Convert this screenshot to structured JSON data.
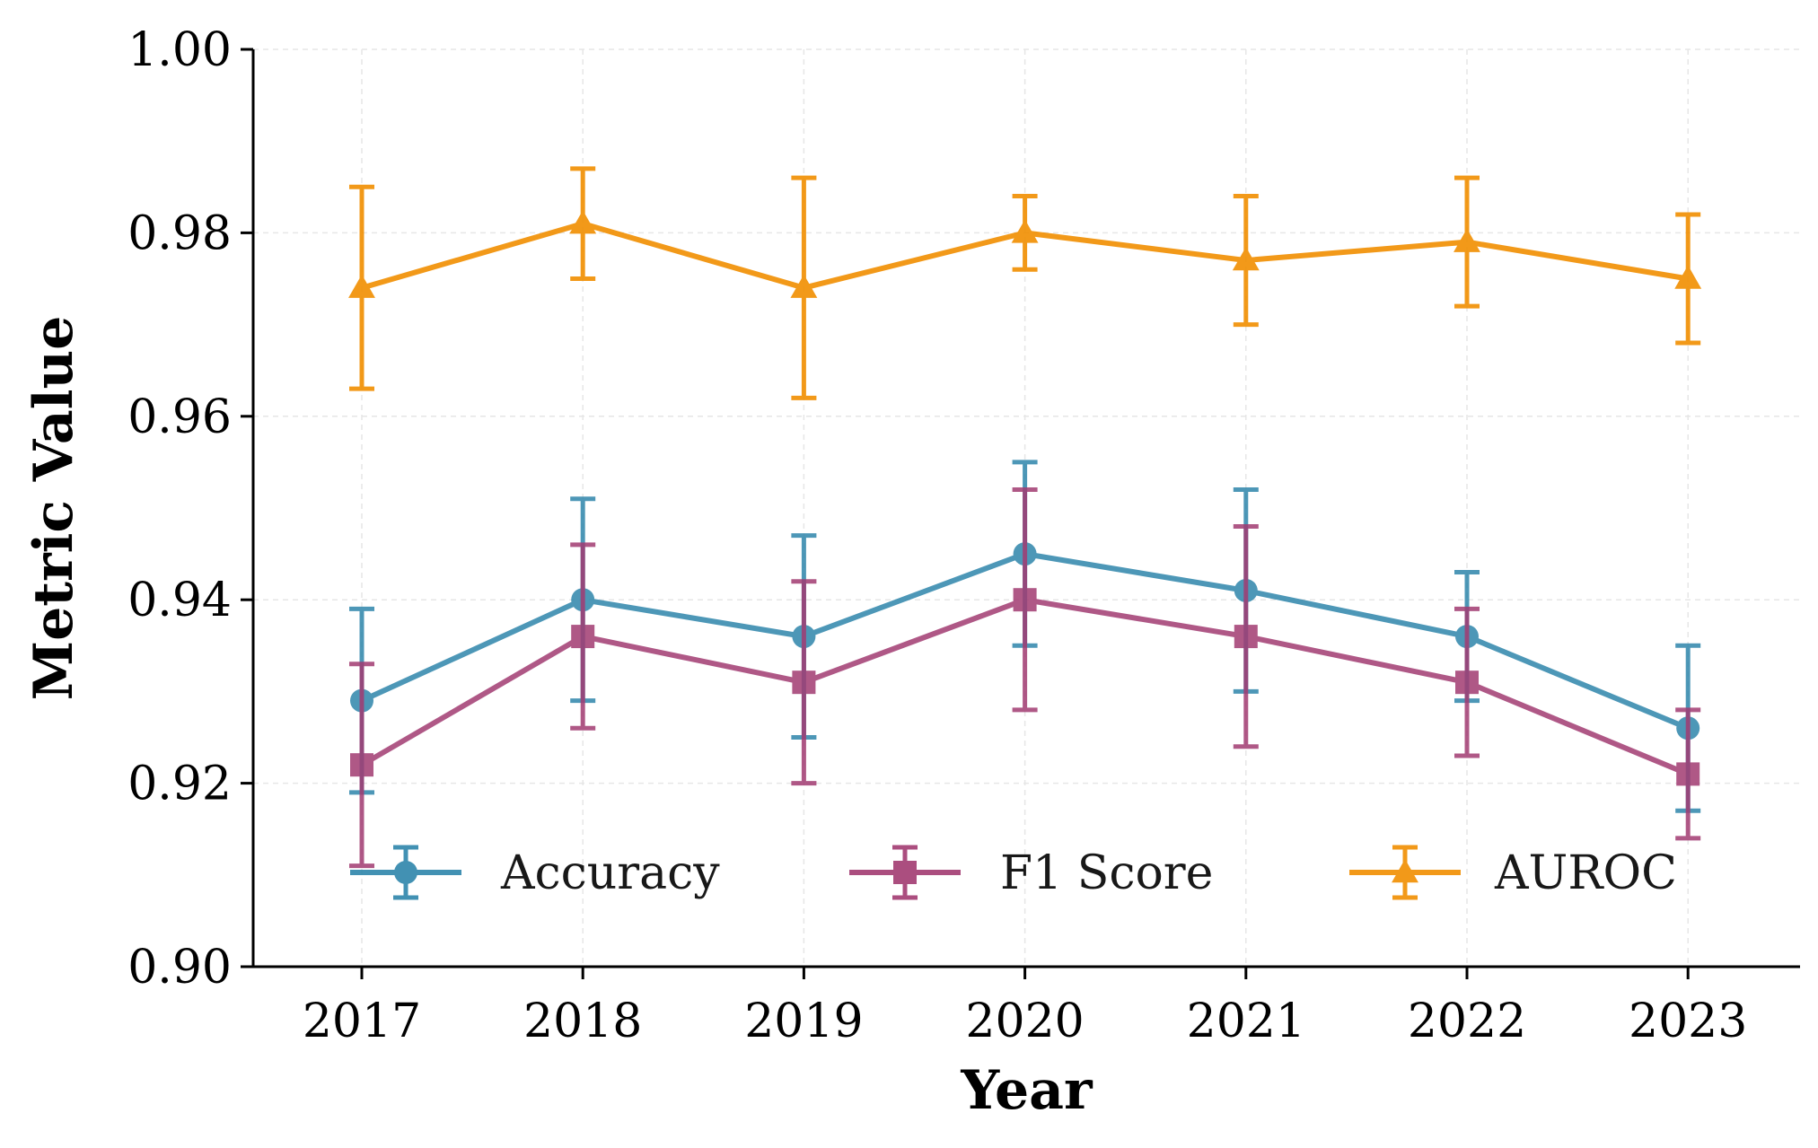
{
  "chart_data": {
    "type": "line",
    "title": "",
    "xlabel": "Year",
    "ylabel": "Metric Value",
    "categories": [
      "2017",
      "2018",
      "2019",
      "2020",
      "2021",
      "2022",
      "2023"
    ],
    "ylim": [
      0.9,
      1.0
    ],
    "yticks": [
      "0.90",
      "0.92",
      "0.94",
      "0.96",
      "0.98",
      "1.00"
    ],
    "grid": true,
    "legend_position": "lower-center",
    "series": [
      {
        "name": "Accuracy",
        "color": "#2E86AB",
        "marker": "circle",
        "values": [
          0.929,
          0.94,
          0.936,
          0.945,
          0.941,
          0.936,
          0.926
        ],
        "errors": [
          0.01,
          0.011,
          0.011,
          0.01,
          0.011,
          0.007,
          0.009
        ]
      },
      {
        "name": "F1 Score",
        "color": "#A23B72",
        "marker": "square",
        "values": [
          0.922,
          0.936,
          0.931,
          0.94,
          0.936,
          0.931,
          0.921
        ],
        "errors": [
          0.011,
          0.01,
          0.011,
          0.012,
          0.012,
          0.008,
          0.007
        ]
      },
      {
        "name": "AUROC",
        "color": "#F18F01",
        "marker": "triangle",
        "values": [
          0.974,
          0.981,
          0.974,
          0.98,
          0.977,
          0.979,
          0.975
        ],
        "errors": [
          0.011,
          0.006,
          0.012,
          0.004,
          0.007,
          0.007,
          0.007
        ]
      }
    ]
  }
}
